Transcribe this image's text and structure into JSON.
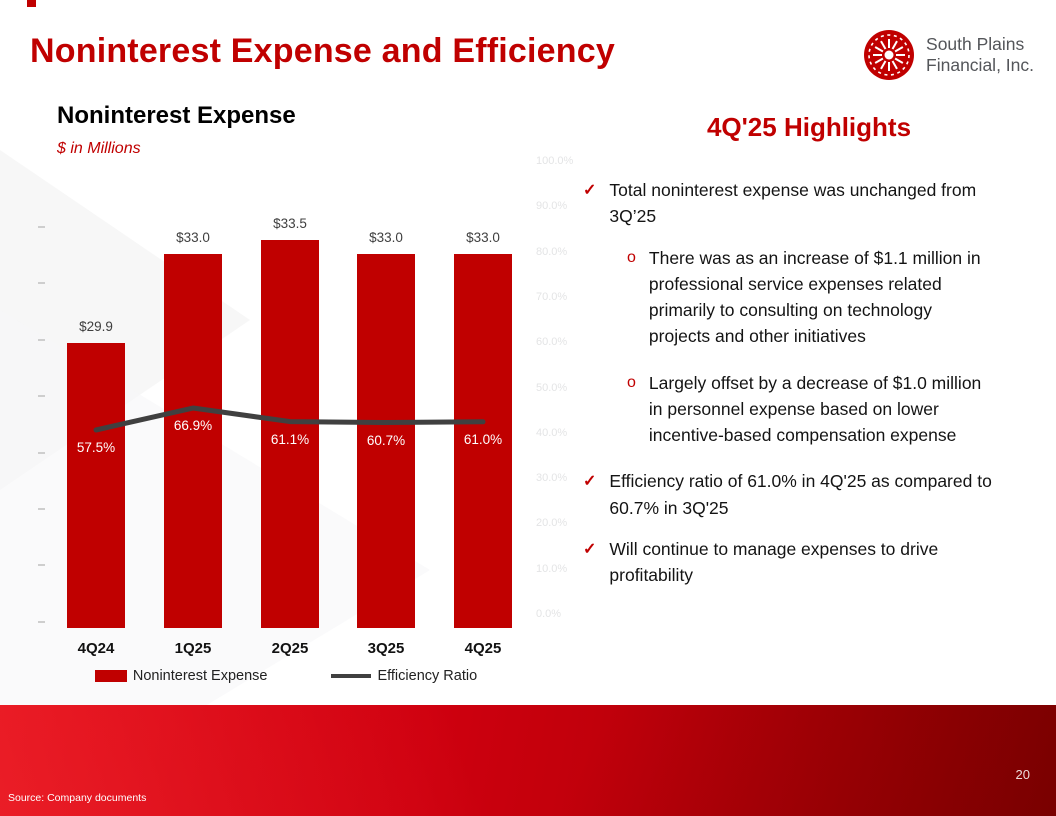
{
  "slide": {
    "title": "Noninterest Expense and Efficiency",
    "page_number": "20",
    "source": "Source: Company documents"
  },
  "logo": {
    "line1": "South Plains",
    "line2": "Financial, Inc."
  },
  "chart": {
    "title": "Noninterest Expense",
    "subtitle": "$ in Millions",
    "legend": [
      {
        "label": "Noninterest Expense",
        "swatch": "bar"
      },
      {
        "label": "Efficiency Ratio",
        "swatch": "line"
      }
    ]
  },
  "chart_data": {
    "type": "bar",
    "title": "Noninterest Expense",
    "ylabel": "$ in Millions",
    "categories": [
      "4Q24",
      "1Q25",
      "2Q25",
      "3Q25",
      "4Q25"
    ],
    "series": [
      {
        "name": "Noninterest Expense",
        "type": "bar",
        "values": [
          29.9,
          33.0,
          33.5,
          33.0,
          33.0
        ],
        "labels": [
          "$29.9",
          "$33.0",
          "$33.5",
          "$33.0",
          "$33.0"
        ],
        "color": "#C00000"
      },
      {
        "name": "Efficiency Ratio",
        "type": "line",
        "values": [
          57.5,
          66.9,
          61.1,
          60.7,
          61.0
        ],
        "labels": [
          "57.5%",
          "66.9%",
          "61.1%",
          "60.7%",
          "61.0%"
        ],
        "color": "#404040"
      }
    ],
    "bar_axis_range": [
      20,
      35
    ],
    "grid": false,
    "legend_position": "bottom",
    "secondary_axis_labels": [
      "100.0%",
      "90.0%",
      "80.0%",
      "70.0%",
      "60.0%",
      "50.0%",
      "40.0%",
      "30.0%",
      "20.0%",
      "10.0%",
      "0.0%"
    ]
  },
  "highlights": {
    "title": "4Q'25 Highlights",
    "items": [
      {
        "level": 1,
        "text": "Total noninterest expense was unchanged from 3Q’25"
      },
      {
        "level": 2,
        "text": "There was as an increase of $1.1 million in professional service expenses related primarily to consulting on technology projects and other initiatives"
      },
      {
        "level": 2,
        "text": "Largely offset by a decrease of $1.0 million in personnel expense based on lower incentive-based compensation expense"
      },
      {
        "level": 1,
        "text": "Efficiency ratio of 61.0% in 4Q'25 as compared to 60.7% in 3Q'25"
      },
      {
        "level": 1,
        "text": "Will continue to manage expenses to drive profitability"
      }
    ]
  }
}
